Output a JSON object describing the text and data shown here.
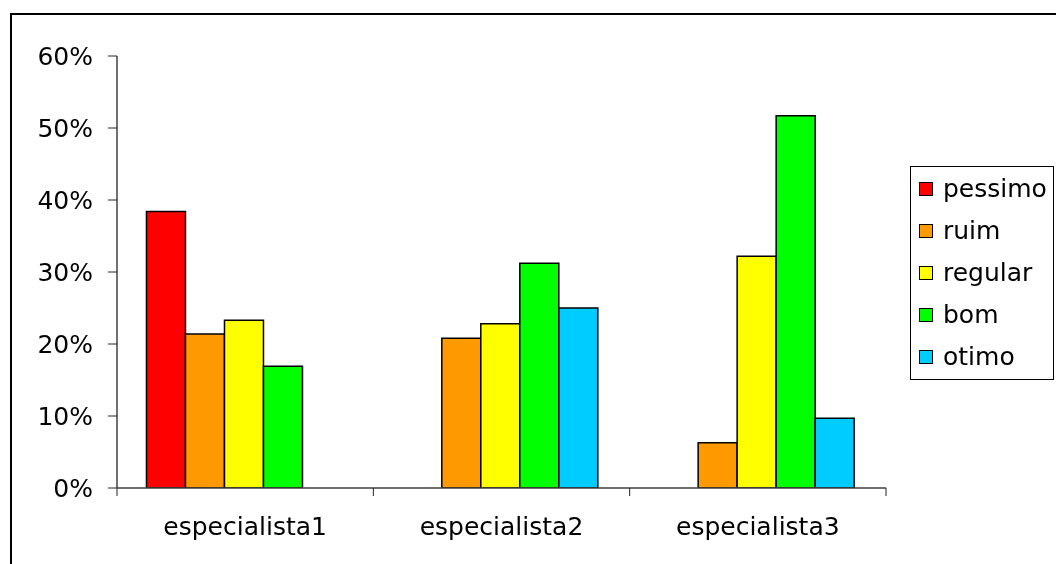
{
  "chart_data": {
    "type": "bar",
    "categories": [
      "especialista1",
      "especialista2",
      "especialista3"
    ],
    "series": [
      {
        "name": "pessimo",
        "color": "#ff0000",
        "values": [
          38.4,
          null,
          null
        ]
      },
      {
        "name": "ruim",
        "color": "#ff9900",
        "values": [
          21.4,
          20.8,
          6.3
        ]
      },
      {
        "name": "regular",
        "color": "#ffff00",
        "values": [
          23.3,
          22.8,
          32.2
        ]
      },
      {
        "name": "bom",
        "color": "#00ff00",
        "values": [
          16.9,
          31.2,
          51.7
        ]
      },
      {
        "name": "otimo",
        "color": "#00ccff",
        "values": [
          null,
          25.0,
          9.7
        ]
      }
    ],
    "ylim": [
      0,
      60
    ],
    "yticks": [
      {
        "value": 0,
        "label": "0%"
      },
      {
        "value": 10,
        "label": "10%"
      },
      {
        "value": 20,
        "label": "20%"
      },
      {
        "value": 30,
        "label": "30%"
      },
      {
        "value": 40,
        "label": "40%"
      },
      {
        "value": 50,
        "label": "50%"
      },
      {
        "value": 60,
        "label": "60%"
      }
    ],
    "legend": "right"
  }
}
